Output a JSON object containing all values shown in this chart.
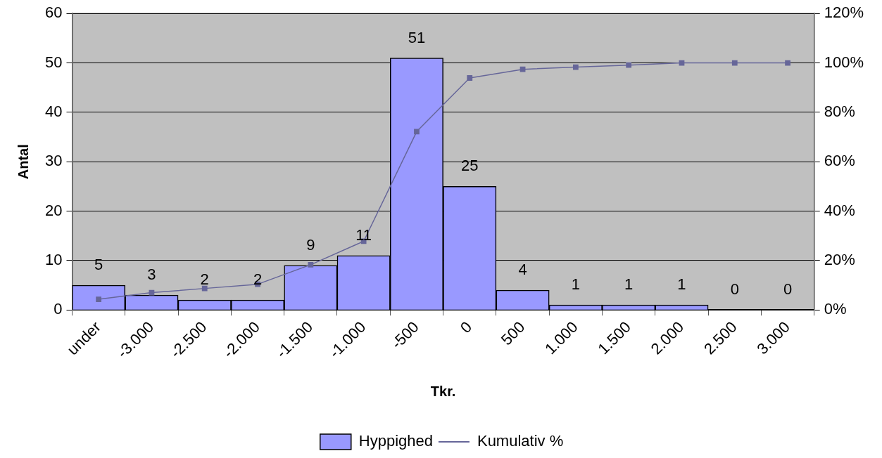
{
  "chart_data": {
    "type": "bar",
    "xlabel": "Tkr.",
    "ylabel": "Antal",
    "categories": [
      "under",
      "-3.000",
      "-2.500",
      "-2.000",
      "-1.500",
      "-1.000",
      "-500",
      "0",
      "500",
      "1.000",
      "1.500",
      "2.000",
      "2.500",
      "3.000"
    ],
    "series": [
      {
        "name": "Hyppighed",
        "type": "bar",
        "color": "#9999ff",
        "values": [
          5,
          3,
          2,
          2,
          9,
          11,
          51,
          25,
          4,
          1,
          1,
          1,
          0,
          0
        ],
        "value_labels": [
          "5",
          "3",
          "2",
          "2",
          "9",
          "11",
          "51",
          "25",
          "4",
          "1",
          "1",
          "1",
          "0",
          "0"
        ]
      },
      {
        "name": "Kumulativ %",
        "type": "line",
        "axis": "y2",
        "color": "#666699",
        "marker": "square",
        "values": [
          4.3,
          7.0,
          8.7,
          10.4,
          18.3,
          27.8,
          72.2,
          93.9,
          97.4,
          98.3,
          99.1,
          100,
          100,
          100
        ]
      }
    ],
    "ylim": [
      0,
      60
    ],
    "yticks": [
      0,
      10,
      20,
      30,
      40,
      50,
      60
    ],
    "y2lim": [
      0,
      120
    ],
    "y2ticks": [
      {
        "value": 0,
        "label": "0%"
      },
      {
        "value": 20,
        "label": "20%"
      },
      {
        "value": 40,
        "label": "40%"
      },
      {
        "value": 60,
        "label": "60%"
      },
      {
        "value": 80,
        "label": "80%"
      },
      {
        "value": 100,
        "label": "100%"
      },
      {
        "value": 120,
        "label": "120%"
      }
    ],
    "grid": "y",
    "legend": "bottom"
  }
}
